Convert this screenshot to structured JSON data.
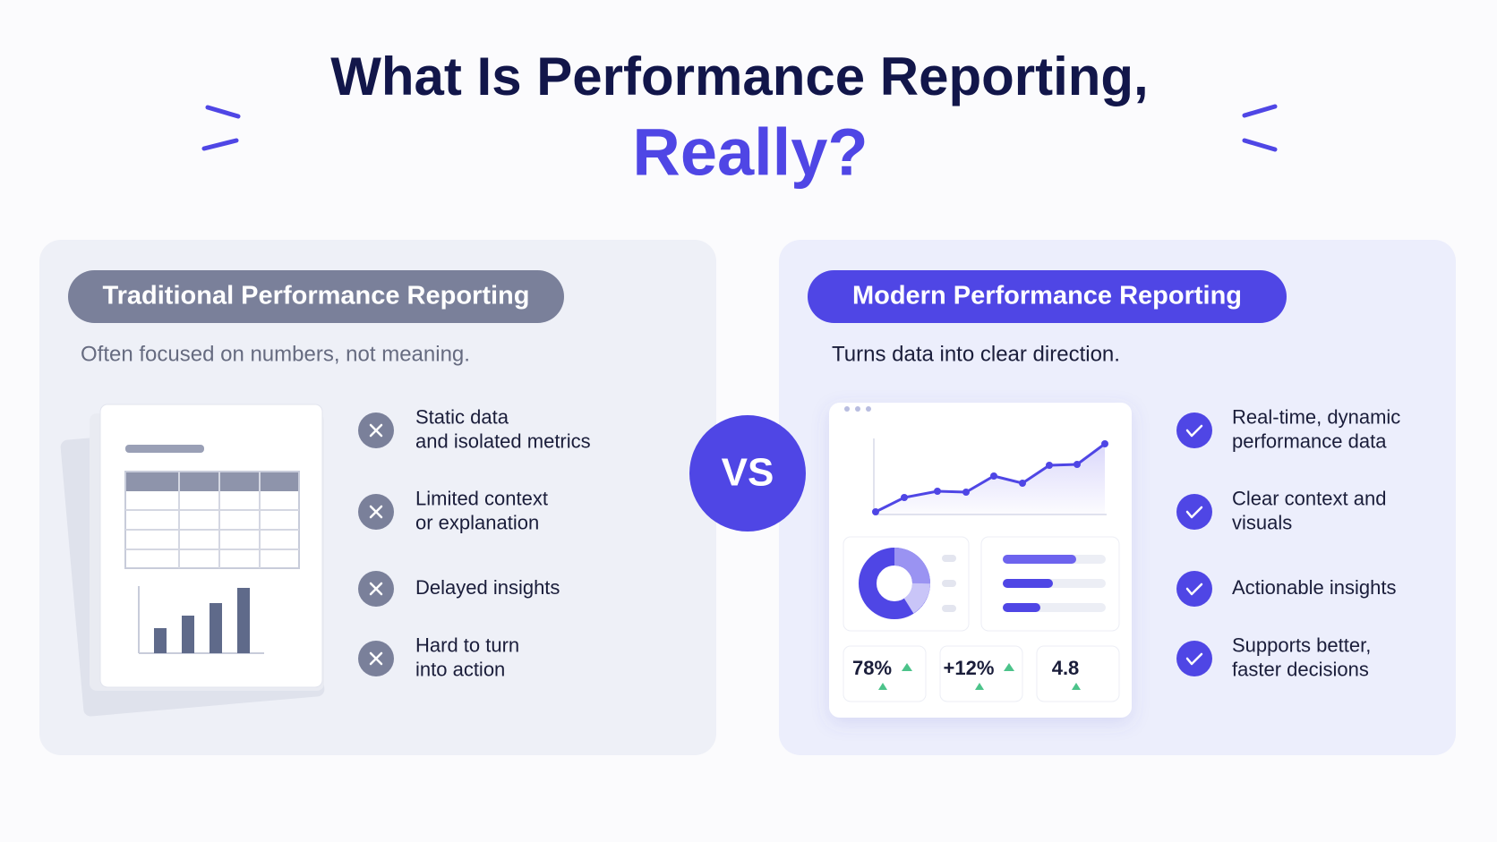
{
  "title": {
    "line1": "What Is Performance Reporting,",
    "line2": "Really?"
  },
  "vs": "VS",
  "panels": [
    {
      "label": "Traditional Performance Reporting",
      "subtitle": "Often focused on numbers, not meaning.",
      "items": [
        [
          "Static data",
          "and isolated metrics"
        ],
        [
          "Limited context",
          "or explanation"
        ],
        [
          "Delayed insights"
        ],
        [
          "Hard to turn",
          "into action"
        ]
      ]
    },
    {
      "label": "Modern Performance Reporting",
      "subtitle": "Turns data into clear direction.",
      "items": [
        [
          "Real-time, dynamic",
          "performance data"
        ],
        [
          "Clear context and",
          "visuals"
        ],
        [
          "Actionable insights"
        ],
        [
          "Supports better,",
          "faster decisions"
        ]
      ],
      "metrics": [
        "78%",
        "+12%",
        "4.8"
      ]
    }
  ]
}
